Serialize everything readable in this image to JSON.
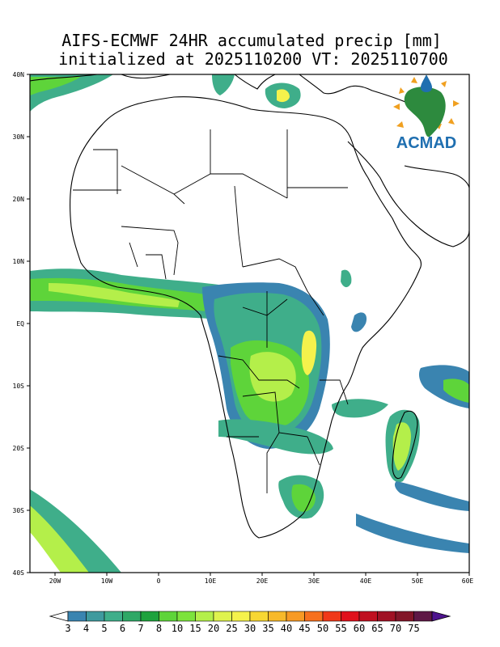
{
  "title_line1": "AIFS-ECMWF 24HR accumulated precip [mm]",
  "title_line2": "initialized at 2025110200 VT: 2025110700",
  "logo_text": "ACMAD",
  "y_labels": [
    "40N",
    "30N",
    "20N",
    "10N",
    "EQ",
    "10S",
    "20S",
    "30S",
    "40S"
  ],
  "x_labels": [
    "20W",
    "10W",
    "0",
    "10E",
    "20E",
    "30E",
    "40E",
    "50E",
    "60E"
  ],
  "colorbar": {
    "labels": [
      "3",
      "4",
      "5",
      "6",
      "7",
      "8",
      "10",
      "15",
      "20",
      "25",
      "30",
      "35",
      "40",
      "45",
      "50",
      "55",
      "60",
      "65",
      "70",
      "75"
    ],
    "colors": [
      "#3a84b0",
      "#3f9a9e",
      "#3fae8a",
      "#2ea866",
      "#1ea23d",
      "#5ed43a",
      "#7ce33c",
      "#b4ef4a",
      "#dff34e",
      "#f5f24c",
      "#f7d733",
      "#f7b92a",
      "#f79a24",
      "#f6701e",
      "#f03818",
      "#e0101b",
      "#c01020",
      "#a01224",
      "#821628",
      "#5e1845"
    ],
    "under_color": "#ffffff",
    "over_color": "#4e138e"
  },
  "map": {
    "lon_range": [
      -25,
      60
    ],
    "lat_range": [
      -40,
      40
    ],
    "description_free": true
  },
  "colors": {
    "lowest": "#3a84b0",
    "low": "#3fae8a",
    "mid": "#5ed43a",
    "high": "#b4ef4a",
    "peak": "#f5f24c"
  }
}
